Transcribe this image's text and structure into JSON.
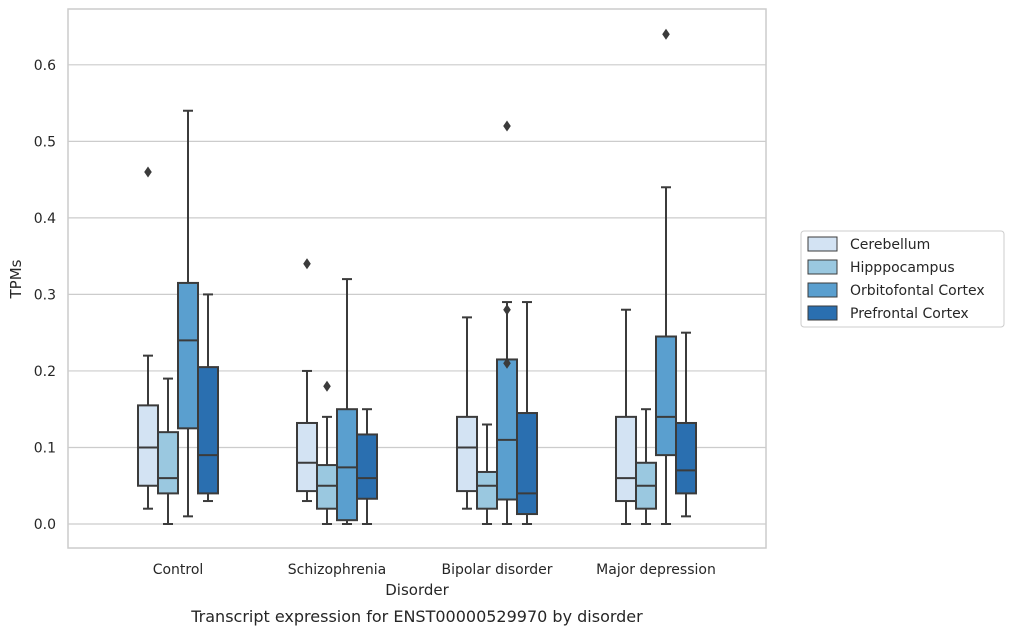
{
  "chart_data": {
    "type": "box",
    "caption": "Transcript expression for ENST00000529970 by disorder",
    "xlabel": "Disorder",
    "ylabel": "TPMs",
    "ylim": [
      -0.032,
      0.675
    ],
    "yticks": [
      0.0,
      0.1,
      0.2,
      0.3,
      0.4,
      0.5,
      0.6
    ],
    "ytick_labels": [
      "0.0",
      "0.1",
      "0.2",
      "0.3",
      "0.4",
      "0.5",
      "0.6"
    ],
    "grid": "horizontal",
    "legend_position": "right",
    "categories": [
      "Control",
      "Schizophrenia",
      "Bipolar disorder",
      "Major depression"
    ],
    "series": [
      {
        "name": "Cerebellum",
        "color": "#d3e3f3",
        "boxes": [
          {
            "whislo": 0.02,
            "q1": 0.05,
            "med": 0.1,
            "q3": 0.155,
            "whishi": 0.22,
            "fliers": [
              0.46
            ]
          },
          {
            "whislo": 0.03,
            "q1": 0.043,
            "med": 0.08,
            "q3": 0.132,
            "whishi": 0.2,
            "fliers": [
              0.34
            ]
          },
          {
            "whislo": 0.02,
            "q1": 0.043,
            "med": 0.1,
            "q3": 0.14,
            "whishi": 0.27,
            "fliers": []
          },
          {
            "whislo": 0.0,
            "q1": 0.03,
            "med": 0.06,
            "q3": 0.14,
            "whishi": 0.28,
            "fliers": []
          }
        ]
      },
      {
        "name": "Hipppocampus",
        "color": "#9ac8e0",
        "boxes": [
          {
            "whislo": 0.0,
            "q1": 0.04,
            "med": 0.06,
            "q3": 0.12,
            "whishi": 0.19,
            "fliers": []
          },
          {
            "whislo": 0.0,
            "q1": 0.02,
            "med": 0.05,
            "q3": 0.077,
            "whishi": 0.14,
            "fliers": [
              0.18
            ]
          },
          {
            "whislo": 0.0,
            "q1": 0.02,
            "med": 0.05,
            "q3": 0.068,
            "whishi": 0.13,
            "fliers": []
          },
          {
            "whislo": 0.0,
            "q1": 0.02,
            "med": 0.05,
            "q3": 0.08,
            "whishi": 0.15,
            "fliers": []
          }
        ]
      },
      {
        "name": "Orbitofontal Cortex",
        "color": "#5a9fcf",
        "boxes": [
          {
            "whislo": 0.01,
            "q1": 0.125,
            "med": 0.24,
            "q3": 0.315,
            "whishi": 0.54,
            "fliers": []
          },
          {
            "whislo": 0.0,
            "q1": 0.005,
            "med": 0.074,
            "q3": 0.15,
            "whishi": 0.32,
            "fliers": []
          },
          {
            "whislo": 0.0,
            "q1": 0.032,
            "med": 0.11,
            "q3": 0.215,
            "whishi": 0.29,
            "fliers": [
              0.52,
              0.28,
              0.21
            ]
          },
          {
            "whislo": 0.0,
            "q1": 0.09,
            "med": 0.14,
            "q3": 0.245,
            "whishi": 0.44,
            "fliers": [
              0.64
            ]
          }
        ]
      },
      {
        "name": "Prefrontal Cortex",
        "color": "#2a6fb0",
        "boxes": [
          {
            "whislo": 0.03,
            "q1": 0.04,
            "med": 0.09,
            "q3": 0.205,
            "whishi": 0.3,
            "fliers": []
          },
          {
            "whislo": 0.0,
            "q1": 0.033,
            "med": 0.06,
            "q3": 0.117,
            "whishi": 0.15,
            "fliers": []
          },
          {
            "whislo": 0.0,
            "q1": 0.013,
            "med": 0.04,
            "q3": 0.145,
            "whishi": 0.29,
            "fliers": []
          },
          {
            "whislo": 0.01,
            "q1": 0.04,
            "med": 0.07,
            "q3": 0.132,
            "whishi": 0.25,
            "fliers": []
          }
        ]
      }
    ]
  }
}
